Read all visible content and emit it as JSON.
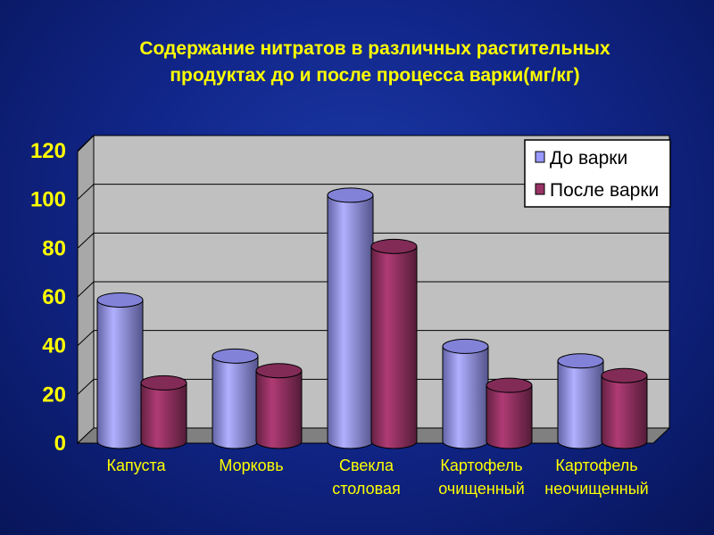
{
  "chart_data": {
    "type": "bar",
    "title": "Содержание нитратов в различных растительных\nпродуктах до и после процесса варки(мг/кг)",
    "categories": [
      [
        "Капуста"
      ],
      [
        "Морковь"
      ],
      [
        "Свекла",
        "столовая"
      ],
      [
        "Картофель",
        "очищенный"
      ],
      [
        "Картофель",
        "неочищенный"
      ]
    ],
    "series": [
      {
        "name": "До варки",
        "values": [
          58,
          35,
          101,
          39,
          33
        ],
        "color": "#9999ff"
      },
      {
        "name": "После варки",
        "values": [
          24,
          29,
          80,
          23,
          27
        ],
        "color": "#993366"
      }
    ],
    "yticks": [
      "0",
      "20",
      "40",
      "60",
      "80",
      "100",
      "120"
    ],
    "ylim": [
      0,
      120
    ],
    "grid": true,
    "legend_position": "top-right",
    "plot_background": "#c0c0c0",
    "background": "#1a339a",
    "text_color": "#ffff00"
  }
}
